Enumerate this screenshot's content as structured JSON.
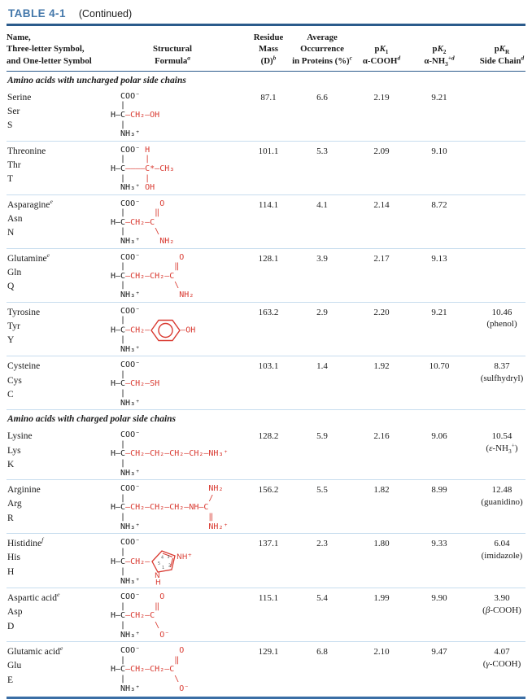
{
  "colors": {
    "accent_blue": "#4377aa",
    "rule_dark": "#2b5b8c",
    "rule_light": "#c7ddee",
    "structure_red": "#d93a31",
    "text": "#1a1a1a"
  },
  "title": {
    "table_label": "TABLE 4-1",
    "continued": "(Continued)"
  },
  "columns": {
    "name": "Name,\nThree-letter Symbol,\nand One-letter Symbol",
    "structure": "Structural\nFormula^*a*^",
    "mass": "Residue\nMass\n(D)^*b*^",
    "occurrence": "Average\nOccurrence\nin Proteins (%)^*c*^",
    "pk1": "p*K*~1~\nα-COOH^*d*^",
    "pk2": "p*K*~2~\nα-NH~3~^+*d*^",
    "pkr": "p*K*~R~\nSide Chain^*d*^"
  },
  "sections": [
    {
      "header": "Amino acids with uncharged polar side chains",
      "rows": [
        {
          "name": "Serine",
          "three": "Ser",
          "one": "S",
          "residue_mass": "87.1",
          "occurrence": "6.6",
          "pk1": "2.19",
          "pk2": "9.21",
          "pkr": "",
          "structure": [
            [
              [
                "k",
                "  COO⁻"
              ]
            ],
            [
              [
                "k",
                "  |"
              ]
            ],
            [
              [
                "k",
                "H—C"
              ],
              [
                "r",
                "—CH₂—OH"
              ]
            ],
            [
              [
                "k",
                "  |"
              ]
            ],
            [
              [
                "k",
                "  NH₃⁺"
              ]
            ]
          ]
        },
        {
          "name": "Threonine",
          "three": "Thr",
          "one": "T",
          "residue_mass": "101.1",
          "occurrence": "5.3",
          "pk1": "2.09",
          "pk2": "9.10",
          "pkr": "",
          "structure": [
            [
              [
                "k",
                "  COO⁻ "
              ],
              [
                "r",
                "H"
              ]
            ],
            [
              [
                "k",
                "  |    "
              ],
              [
                "r",
                "|"
              ]
            ],
            [
              [
                "k",
                "H—C"
              ],
              [
                "r",
                "————C*—CH₃"
              ]
            ],
            [
              [
                "k",
                "  |    "
              ],
              [
                "r",
                "|"
              ]
            ],
            [
              [
                "k",
                "  NH₃⁺ "
              ],
              [
                "r",
                "OH"
              ]
            ]
          ]
        },
        {
          "name": "Asparagine^*e*^",
          "three": "Asn",
          "one": "N",
          "residue_mass": "114.1",
          "occurrence": "4.1",
          "pk1": "2.14",
          "pk2": "8.72",
          "pkr": "",
          "structure": [
            [
              [
                "k",
                "  COO⁻"
              ],
              [
                "r",
                "    O"
              ]
            ],
            [
              [
                "k",
                "  |"
              ],
              [
                "r",
                "      ‖"
              ]
            ],
            [
              [
                "k",
                "H—C"
              ],
              [
                "r",
                "—CH₂—C"
              ]
            ],
            [
              [
                "k",
                "  |"
              ],
              [
                "r",
                "      \\"
              ]
            ],
            [
              [
                "k",
                "  NH₃⁺"
              ],
              [
                "r",
                "    NH₂"
              ]
            ]
          ]
        },
        {
          "name": "Glutamine^*e*^",
          "three": "Gln",
          "one": "Q",
          "residue_mass": "128.1",
          "occurrence": "3.9",
          "pk1": "2.17",
          "pk2": "9.13",
          "pkr": "",
          "structure": [
            [
              [
                "k",
                "  COO⁻"
              ],
              [
                "r",
                "        O"
              ]
            ],
            [
              [
                "k",
                "  |"
              ],
              [
                "r",
                "          ‖"
              ]
            ],
            [
              [
                "k",
                "H—C"
              ],
              [
                "r",
                "—CH₂—CH₂—C"
              ]
            ],
            [
              [
                "k",
                "  |"
              ],
              [
                "r",
                "          \\"
              ]
            ],
            [
              [
                "k",
                "  NH₃⁺"
              ],
              [
                "r",
                "        NH₂"
              ]
            ]
          ]
        },
        {
          "name": "Tyrosine",
          "three": "Tyr",
          "one": "Y",
          "residue_mass": "163.2",
          "occurrence": "2.9",
          "pk1": "2.20",
          "pk2": "9.21",
          "pkr": "10.46\n(phenol)",
          "structure": [
            [
              [
                "k",
                "  COO⁻"
              ]
            ],
            [
              [
                "k",
                "  |"
              ]
            ],
            [
              [
                "k",
                "H—C"
              ],
              [
                "r",
                "—CH₂—"
              ],
              [
                "svg",
                "benzene"
              ],
              [
                "r",
                "—OH"
              ]
            ],
            [
              [
                "k",
                "  |"
              ]
            ],
            [
              [
                "k",
                "  NH₃⁺"
              ]
            ]
          ]
        },
        {
          "name": "Cysteine",
          "three": "Cys",
          "one": "C",
          "residue_mass": "103.1",
          "occurrence": "1.4",
          "pk1": "1.92",
          "pk2": "10.70",
          "pkr": "8.37\n(sulfhydryl)",
          "structure": [
            [
              [
                "k",
                "  COO⁻"
              ]
            ],
            [
              [
                "k",
                "  |"
              ]
            ],
            [
              [
                "k",
                "H—C"
              ],
              [
                "r",
                "—CH₂—SH"
              ]
            ],
            [
              [
                "k",
                "  |"
              ]
            ],
            [
              [
                "k",
                "  NH₃⁺"
              ]
            ]
          ]
        }
      ]
    },
    {
      "header": "Amino acids with charged polar side chains",
      "rows": [
        {
          "name": "Lysine",
          "three": "Lys",
          "one": "K",
          "residue_mass": "128.2",
          "occurrence": "5.9",
          "pk1": "2.16",
          "pk2": "9.06",
          "pkr": "10.54\n(*ε*-NH~3~^+^)",
          "structure": [
            [
              [
                "k",
                "  COO⁻"
              ]
            ],
            [
              [
                "k",
                "  |"
              ]
            ],
            [
              [
                "k",
                "H—C"
              ],
              [
                "r",
                "—CH₂—CH₂—CH₂—CH₂—NH₃⁺"
              ]
            ],
            [
              [
                "k",
                "  |"
              ]
            ],
            [
              [
                "k",
                "  NH₃⁺"
              ]
            ]
          ]
        },
        {
          "name": "Arginine",
          "three": "Arg",
          "one": "R",
          "residue_mass": "156.2",
          "occurrence": "5.5",
          "pk1": "1.82",
          "pk2": "8.99",
          "pkr": "12.48\n(guanidino)",
          "structure": [
            [
              [
                "k",
                "  COO⁻"
              ],
              [
                "r",
                "              NH₂"
              ]
            ],
            [
              [
                "k",
                "  |"
              ],
              [
                "r",
                "                 /"
              ]
            ],
            [
              [
                "k",
                "H—C"
              ],
              [
                "r",
                "—CH₂—CH₂—CH₂—NH—C"
              ]
            ],
            [
              [
                "k",
                "  |"
              ],
              [
                "r",
                "                 ‖"
              ]
            ],
            [
              [
                "k",
                "  NH₃⁺"
              ],
              [
                "r",
                "              NH₂⁺"
              ]
            ]
          ]
        },
        {
          "name": "Histidine^*f*^",
          "three": "His",
          "one": "H",
          "residue_mass": "137.1",
          "occurrence": "2.3",
          "pk1": "1.80",
          "pk2": "9.33",
          "pkr": "6.04\n(imidazole)",
          "structure": [
            [
              [
                "k",
                "  COO⁻"
              ]
            ],
            [
              [
                "k",
                "  |"
              ]
            ],
            [
              [
                "k",
                "H—C"
              ],
              [
                "r",
                "—CH₂—"
              ],
              [
                "svg",
                "imidazole"
              ]
            ],
            [
              [
                "k",
                "  |"
              ]
            ],
            [
              [
                "k",
                "  NH₃⁺"
              ]
            ]
          ]
        },
        {
          "name": "Aspartic acid^*e*^",
          "three": "Asp",
          "one": "D",
          "residue_mass": "115.1",
          "occurrence": "5.4",
          "pk1": "1.99",
          "pk2": "9.90",
          "pkr": "3.90\n(*β*-COOH)",
          "structure": [
            [
              [
                "k",
                "  COO⁻"
              ],
              [
                "r",
                "    O"
              ]
            ],
            [
              [
                "k",
                "  |"
              ],
              [
                "r",
                "      ‖"
              ]
            ],
            [
              [
                "k",
                "H—C"
              ],
              [
                "r",
                "—CH₂—C"
              ]
            ],
            [
              [
                "k",
                "  |"
              ],
              [
                "r",
                "      \\"
              ]
            ],
            [
              [
                "k",
                "  NH₃⁺"
              ],
              [
                "r",
                "    O⁻"
              ]
            ]
          ]
        },
        {
          "name": "Glutamic acid^*e*^",
          "three": "Glu",
          "one": "E",
          "residue_mass": "129.1",
          "occurrence": "6.8",
          "pk1": "2.10",
          "pk2": "9.47",
          "pkr": "4.07\n(*γ*-COOH)",
          "structure": [
            [
              [
                "k",
                "  COO⁻"
              ],
              [
                "r",
                "        O"
              ]
            ],
            [
              [
                "k",
                "  |"
              ],
              [
                "r",
                "          ‖"
              ]
            ],
            [
              [
                "k",
                "H—C"
              ],
              [
                "r",
                "—CH₂—CH₂—C"
              ]
            ],
            [
              [
                "k",
                "  |"
              ],
              [
                "r",
                "          \\"
              ]
            ],
            [
              [
                "k",
                "  NH₃⁺"
              ],
              [
                "r",
                "        O⁻"
              ]
            ]
          ]
        }
      ]
    }
  ]
}
